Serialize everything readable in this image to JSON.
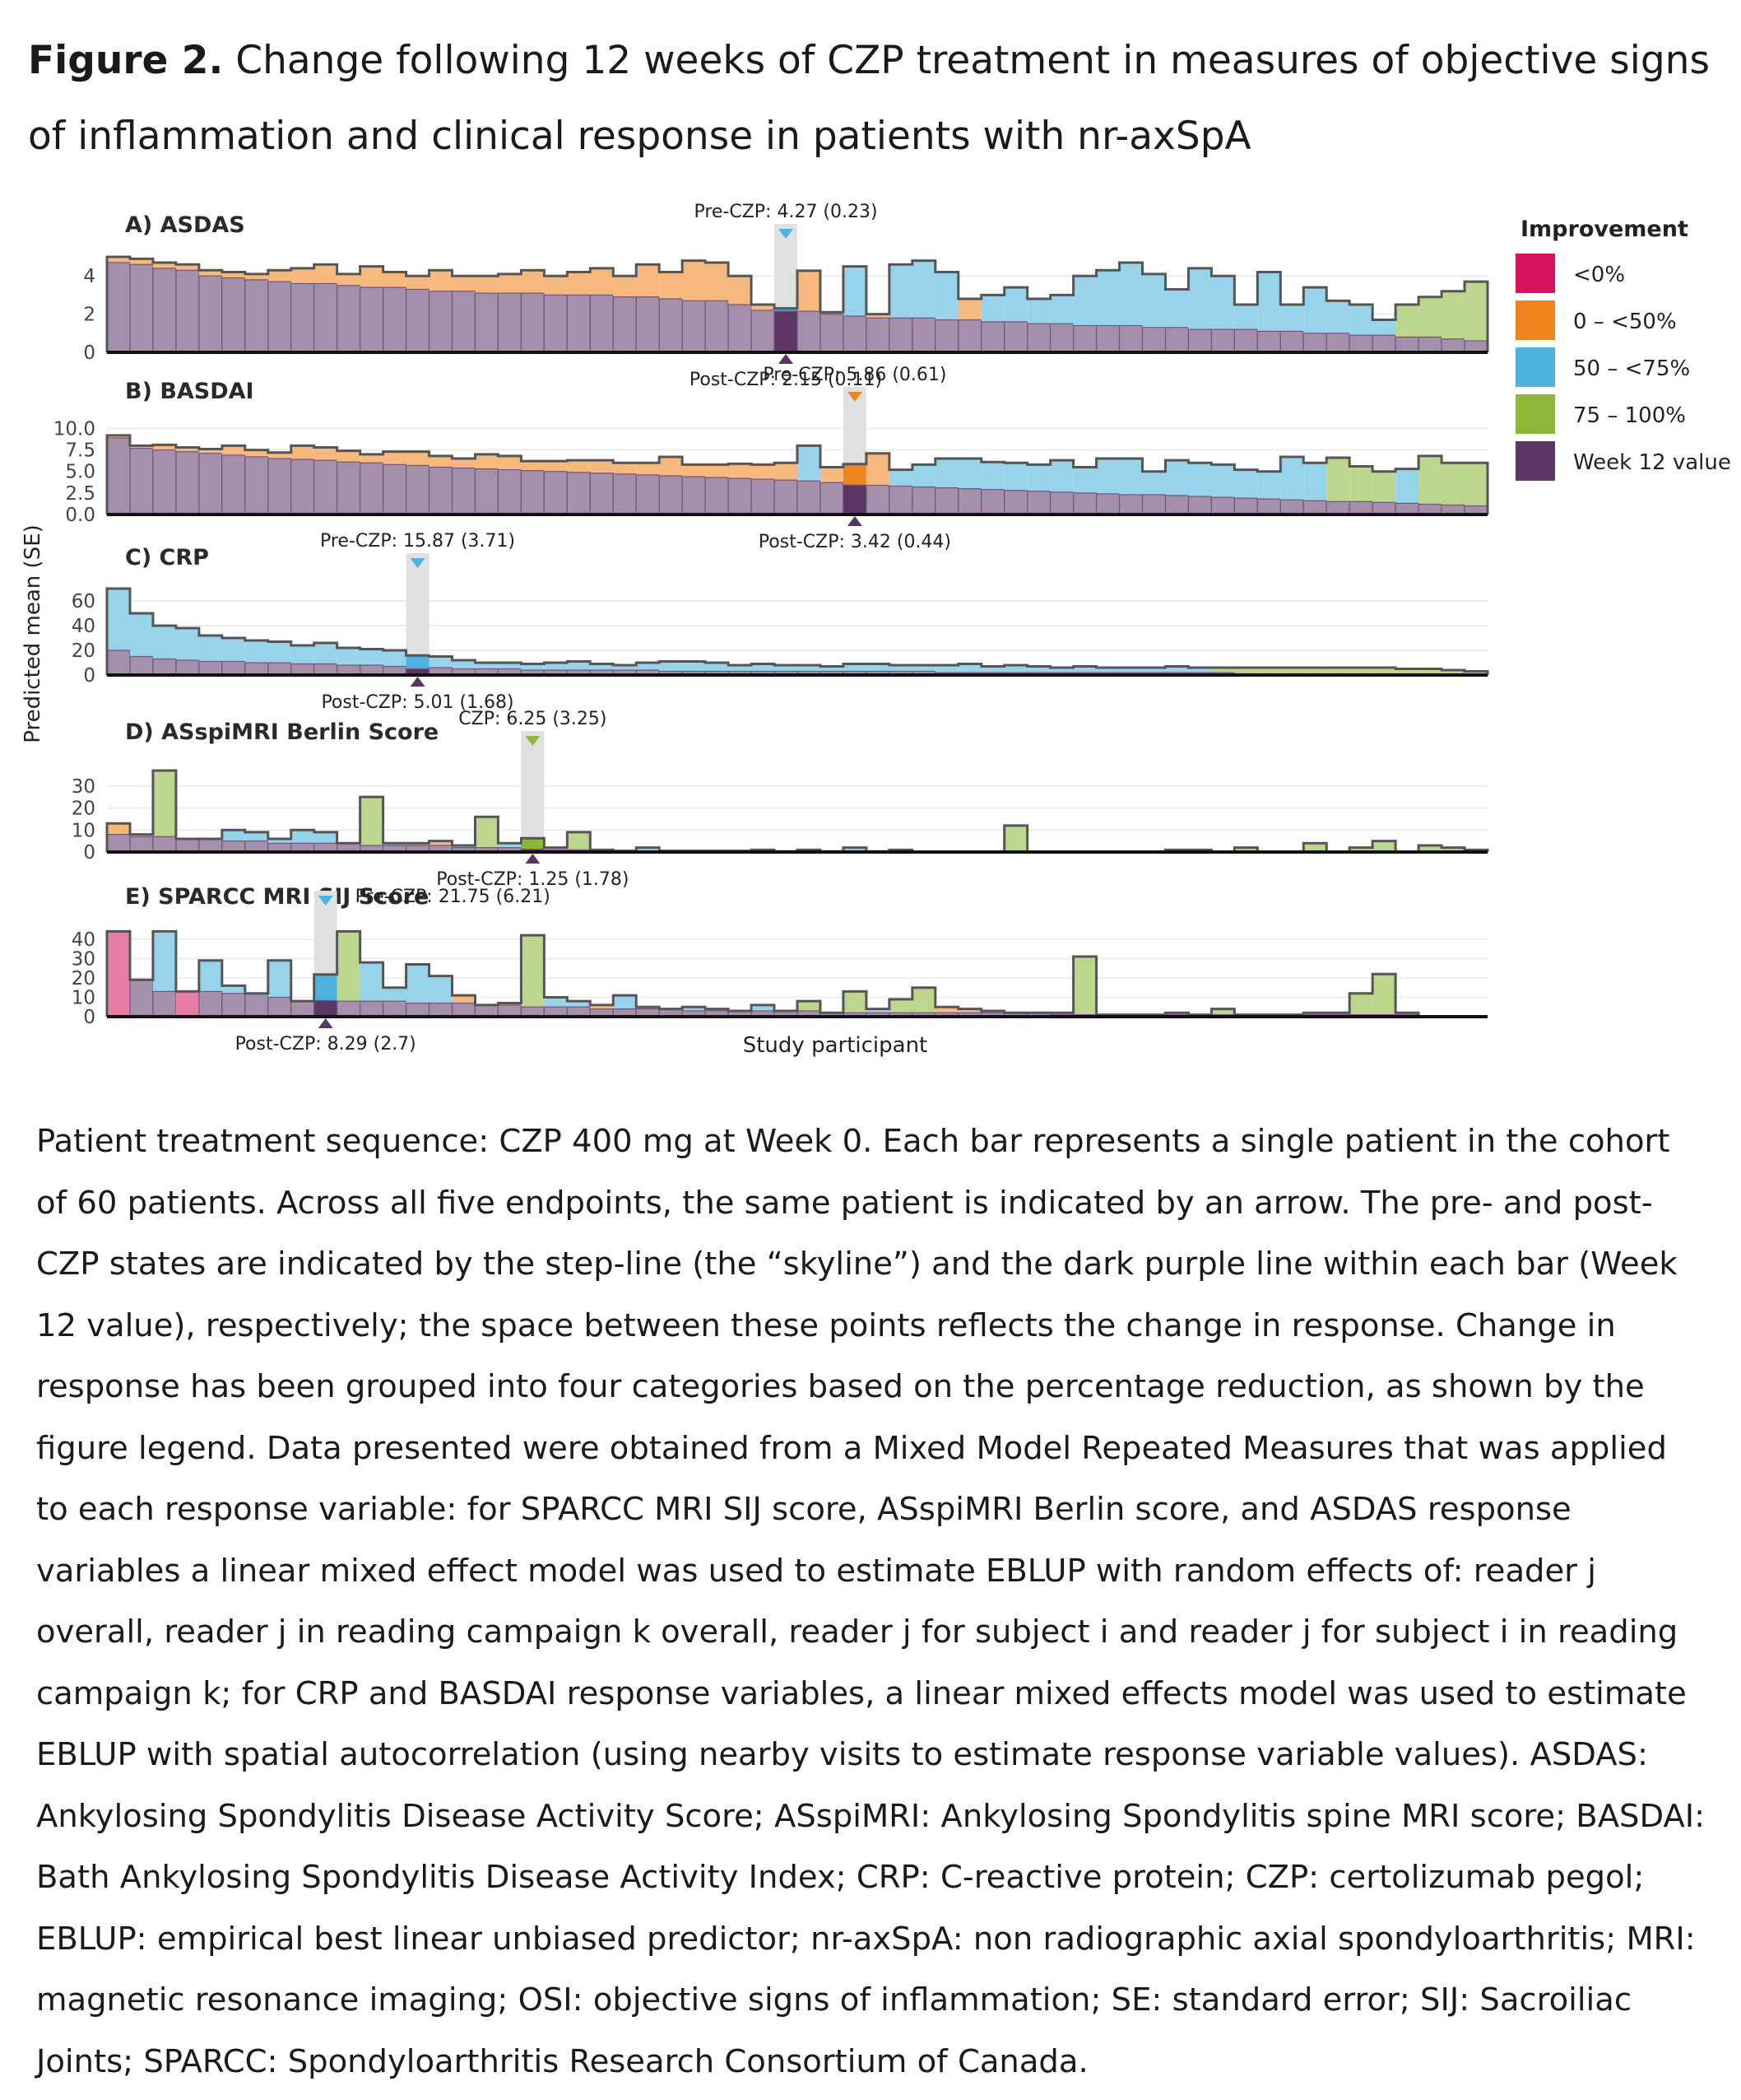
{
  "figure": {
    "label": "Figure 2.",
    "title": "Change following 12 weeks of CZP treatment in measures of objective signs of inflammation and clinical response in patients with nr-axSpA"
  },
  "colors": {
    "lt0": "#D6135F",
    "0to50": "#F0851E",
    "50to75": "#4DB3DE",
    "75to100": "#8DB83A",
    "week12": "#5B3566",
    "highlight": "#E0E0E0"
  },
  "chart_data": {
    "type": "bar",
    "n_patients": 60,
    "highlighted_patient_note": "Across all five endpoints, the same patient is indicated by an arrow.",
    "ylabel": "Predicted mean (SE)",
    "xlabel": "Study participant",
    "legend": {
      "title": "Improvement",
      "position": "top-right",
      "items": [
        {
          "key": "lt0",
          "label": "<0%"
        },
        {
          "key": "0to50",
          "label": "0 – <50%"
        },
        {
          "key": "50to75",
          "label": "50 – <75%"
        },
        {
          "key": "75to100",
          "label": "75 – 100%"
        },
        {
          "key": "week12",
          "label": "Week 12 value"
        }
      ]
    },
    "panels": [
      {
        "id": "asdas",
        "title": "A) ASDAS",
        "ylim": [
          0,
          5
        ],
        "yticks": [
          "0",
          "2",
          "4"
        ],
        "ytick_values": [
          0,
          2,
          4
        ],
        "highlight_index": 29,
        "annot_pre": "Pre-CZP: 4.27 (0.23)",
        "annot_post": "Post-CZP: 2.15 (0.11)",
        "pre": [
          5.0,
          4.9,
          4.7,
          4.6,
          4.3,
          4.2,
          4.1,
          4.3,
          4.4,
          4.6,
          4.1,
          4.5,
          4.2,
          4.0,
          4.3,
          4.0,
          4.0,
          4.1,
          4.3,
          4.0,
          4.2,
          4.4,
          4.0,
          4.6,
          4.2,
          4.8,
          4.7,
          4.0,
          2.5,
          2.3,
          4.27,
          2.1,
          4.5,
          2.0,
          4.6,
          4.8,
          4.2,
          2.8,
          3.0,
          3.4,
          2.8,
          3.0,
          4.0,
          4.3,
          4.7,
          4.1,
          3.3,
          4.4,
          4.0,
          2.5,
          4.2,
          2.5,
          3.4,
          2.7,
          2.5,
          1.7,
          2.5,
          2.9,
          3.2,
          3.7
        ],
        "post": [
          4.7,
          4.6,
          4.4,
          4.3,
          4.0,
          3.9,
          3.8,
          3.7,
          3.6,
          3.6,
          3.5,
          3.4,
          3.4,
          3.3,
          3.2,
          3.2,
          3.1,
          3.1,
          3.1,
          3.0,
          3.0,
          3.0,
          2.9,
          2.9,
          2.8,
          2.7,
          2.7,
          2.5,
          2.2,
          2.15,
          2.15,
          2.0,
          1.9,
          1.8,
          1.8,
          1.8,
          1.7,
          1.7,
          1.6,
          1.6,
          1.5,
          1.5,
          1.4,
          1.4,
          1.4,
          1.3,
          1.3,
          1.2,
          1.2,
          1.2,
          1.1,
          1.1,
          1.0,
          1.0,
          0.9,
          0.9,
          0.8,
          0.8,
          0.7,
          0.6
        ],
        "category": [
          "0to50",
          "0to50",
          "0to50",
          "0to50",
          "0to50",
          "0to50",
          "0to50",
          "0to50",
          "0to50",
          "0to50",
          "0to50",
          "0to50",
          "0to50",
          "0to50",
          "0to50",
          "0to50",
          "0to50",
          "0to50",
          "0to50",
          "0to50",
          "0to50",
          "0to50",
          "0to50",
          "0to50",
          "0to50",
          "0to50",
          "0to50",
          "0to50",
          "0to50",
          "50to75",
          "0to50",
          "0to50",
          "50to75",
          "0to50",
          "50to75",
          "50to75",
          "50to75",
          "0to50",
          "50to75",
          "50to75",
          "50to75",
          "50to75",
          "50to75",
          "50to75",
          "50to75",
          "50to75",
          "50to75",
          "50to75",
          "50to75",
          "50to75",
          "50to75",
          "50to75",
          "50to75",
          "50to75",
          "50to75",
          "50to75",
          "75to100",
          "75to100",
          "75to100",
          "75to100"
        ]
      },
      {
        "id": "basdai",
        "title": "B) BASDAI",
        "ylim": [
          0,
          11
        ],
        "yticks": [
          "0.0",
          "2.5",
          "5.0",
          "7.5",
          "10.0"
        ],
        "ytick_values": [
          0,
          2.5,
          5,
          7.5,
          10
        ],
        "highlight_index": 32,
        "annot_pre": "Pre-CZP: 5.86 (0.61)",
        "annot_post": "Post-CZP: 3.42 (0.44)",
        "pre": [
          9.2,
          8.0,
          8.1,
          7.8,
          7.6,
          8.0,
          7.5,
          7.2,
          8.0,
          7.8,
          7.4,
          7.0,
          7.3,
          7.3,
          6.8,
          6.5,
          7.0,
          6.8,
          6.2,
          6.2,
          6.3,
          6.3,
          6.0,
          6.0,
          6.7,
          5.8,
          5.8,
          5.9,
          5.8,
          6.0,
          8.0,
          5.5,
          5.86,
          7.1,
          5.2,
          5.8,
          6.5,
          6.5,
          6.1,
          6.0,
          5.8,
          6.3,
          5.5,
          6.5,
          6.5,
          5.0,
          6.3,
          6.0,
          5.8,
          5.2,
          5.0,
          6.7,
          6.0,
          6.6,
          5.6,
          5.0,
          5.3,
          6.8,
          6.0,
          6.0
        ],
        "post": [
          8.9,
          7.7,
          7.5,
          7.3,
          7.1,
          6.9,
          6.7,
          6.5,
          6.4,
          6.3,
          6.1,
          6.0,
          5.8,
          5.7,
          5.5,
          5.4,
          5.3,
          5.2,
          5.1,
          5.0,
          4.9,
          4.8,
          4.7,
          4.6,
          4.5,
          4.4,
          4.3,
          4.2,
          4.1,
          4.0,
          3.9,
          3.7,
          3.42,
          3.4,
          3.3,
          3.2,
          3.1,
          3.0,
          2.9,
          2.8,
          2.7,
          2.6,
          2.5,
          2.4,
          2.3,
          2.3,
          2.2,
          2.1,
          2.0,
          1.9,
          1.8,
          1.7,
          1.6,
          1.5,
          1.5,
          1.4,
          1.3,
          1.2,
          1.1,
          1.0
        ],
        "category": [
          "0to50",
          "0to50",
          "0to50",
          "0to50",
          "0to50",
          "0to50",
          "0to50",
          "0to50",
          "0to50",
          "0to50",
          "0to50",
          "0to50",
          "0to50",
          "0to50",
          "0to50",
          "0to50",
          "0to50",
          "0to50",
          "0to50",
          "0to50",
          "0to50",
          "0to50",
          "0to50",
          "0to50",
          "0to50",
          "0to50",
          "0to50",
          "0to50",
          "0to50",
          "0to50",
          "50to75",
          "0to50",
          "0to50",
          "0to50",
          "50to75",
          "50to75",
          "50to75",
          "50to75",
          "50to75",
          "50to75",
          "50to75",
          "50to75",
          "50to75",
          "50to75",
          "50to75",
          "50to75",
          "50to75",
          "50to75",
          "50to75",
          "50to75",
          "50to75",
          "50to75",
          "50to75",
          "75to100",
          "75to100",
          "75to100",
          "50to75",
          "75to100",
          "75to100",
          "75to100"
        ]
      },
      {
        "id": "crp",
        "title": "C) CRP",
        "ylim": [
          0,
          72
        ],
        "yticks": [
          "0",
          "20",
          "40",
          "60"
        ],
        "ytick_values": [
          0,
          20,
          40,
          60
        ],
        "highlight_index": 13,
        "annot_pre": "Pre-CZP: 15.87 (3.71)",
        "annot_post": "Post-CZP: 5.01 (1.68)",
        "pre": [
          70,
          50,
          40,
          38,
          32,
          30,
          28,
          27,
          24,
          26,
          22,
          21,
          20,
          15.87,
          15,
          12,
          10,
          10,
          9,
          10,
          11,
          9,
          8,
          10,
          11,
          11,
          10,
          8,
          9,
          8,
          8,
          7,
          9,
          9,
          8,
          8,
          8,
          9,
          7,
          8,
          7,
          6,
          7,
          6,
          6,
          6,
          7,
          6,
          6,
          6,
          6,
          6,
          6,
          6,
          6,
          6,
          5,
          5,
          4,
          3
        ],
        "post": [
          20,
          15,
          13,
          12,
          11,
          11,
          10,
          10,
          9,
          9,
          8,
          8,
          7,
          5.01,
          6,
          5,
          5,
          5,
          4,
          4,
          4,
          4,
          4,
          4,
          3,
          3,
          3,
          3,
          3,
          3,
          3,
          3,
          3,
          3,
          3,
          3,
          2,
          2,
          2,
          2,
          2,
          2,
          2,
          2,
          2,
          2,
          2,
          2,
          2,
          1,
          1,
          1,
          1,
          1,
          1,
          1,
          1,
          1,
          1,
          1
        ],
        "category": [
          "50to75",
          "50to75",
          "50to75",
          "50to75",
          "50to75",
          "50to75",
          "50to75",
          "50to75",
          "50to75",
          "50to75",
          "50to75",
          "50to75",
          "50to75",
          "50to75",
          "50to75",
          "50to75",
          "50to75",
          "50to75",
          "50to75",
          "50to75",
          "50to75",
          "50to75",
          "50to75",
          "50to75",
          "50to75",
          "50to75",
          "50to75",
          "50to75",
          "50to75",
          "50to75",
          "50to75",
          "50to75",
          "50to75",
          "50to75",
          "50to75",
          "50to75",
          "50to75",
          "50to75",
          "50to75",
          "50to75",
          "50to75",
          "50to75",
          "50to75",
          "50to75",
          "50to75",
          "50to75",
          "50to75",
          "50to75",
          "75to100",
          "75to100",
          "75to100",
          "75to100",
          "75to100",
          "75to100",
          "75to100",
          "75to100",
          "75to100",
          "75to100",
          "75to100",
          "75to100"
        ]
      },
      {
        "id": "asspimri",
        "title": "D) ASspiMRI Berlin Score",
        "ylim": [
          0,
          40
        ],
        "yticks": [
          "0",
          "10",
          "20",
          "30"
        ],
        "ytick_values": [
          0,
          10,
          20,
          30
        ],
        "highlight_index": 18,
        "annot_pre": "CZP: 6.25 (3.25)",
        "annot_post": "Post-CZP: 1.25 (1.78)",
        "pre": [
          13,
          8,
          37,
          6,
          3,
          10,
          9,
          6,
          10,
          9,
          4,
          25,
          4,
          4,
          5,
          3,
          16,
          4,
          6.25,
          2,
          9,
          1,
          0,
          2,
          0,
          0,
          0,
          0,
          1,
          0,
          1,
          0,
          2,
          0,
          1,
          0,
          0,
          0,
          0,
          12,
          0,
          0,
          0,
          0,
          0,
          0,
          1,
          1,
          0,
          2,
          0,
          0,
          4,
          0,
          2,
          5,
          0,
          3,
          2,
          1
        ],
        "post": [
          8,
          7,
          7,
          6,
          6,
          5,
          5,
          4,
          4,
          4,
          4,
          3,
          3,
          3,
          3,
          2,
          2,
          2,
          1.25,
          1,
          1,
          1,
          0.5,
          0.5,
          0.5,
          0.5,
          0.5,
          0.5,
          0.5,
          0.3,
          0.3,
          0.3,
          0.3,
          0.3,
          0.3,
          0.2,
          0.2,
          0.2,
          0.2,
          0.2,
          0.2,
          0.2,
          0.2,
          0.2,
          0.2,
          0.2,
          0.2,
          0.2,
          0.2,
          0.2,
          0.2,
          0.2,
          0.2,
          0.2,
          0.2,
          0.2,
          0.2,
          0.2,
          0.2,
          0.2
        ],
        "category": [
          "0to50",
          "50to75",
          "75to100",
          "50to75",
          "0to50",
          "50to75",
          "50to75",
          "50to75",
          "50to75",
          "50to75",
          "50to75",
          "75to100",
          "50to75",
          "0to50",
          "0to50",
          "50to75",
          "75to100",
          "50to75",
          "75to100",
          "50to75",
          "75to100",
          "50to75",
          "50to75",
          "50to75",
          "50to75",
          "50to75",
          "50to75",
          "50to75",
          "50to75",
          "50to75",
          "50to75",
          "50to75",
          "50to75",
          "50to75",
          "50to75",
          "50to75",
          "50to75",
          "50to75",
          "50to75",
          "75to100",
          "50to75",
          "50to75",
          "50to75",
          "50to75",
          "50to75",
          "50to75",
          "75to100",
          "75to100",
          "75to100",
          "75to100",
          "75to100",
          "75to100",
          "75to100",
          "75to100",
          "75to100",
          "75to100",
          "75to100",
          "75to100",
          "75to100",
          "75to100"
        ]
      },
      {
        "id": "sparcc",
        "title": "E) SPARCC MRI SIJ Score",
        "ylim": [
          0,
          48
        ],
        "yticks": [
          "0",
          "10",
          "20",
          "30",
          "40"
        ],
        "ytick_values": [
          0,
          10,
          20,
          30,
          40
        ],
        "highlight_index": 9,
        "annot_pre": "Pre-CZP: 21.75 (6.21)",
        "annot_post": "Post-CZP: 8.29 (2.7)",
        "pre": [
          44,
          19,
          44,
          13,
          29,
          16,
          8,
          29,
          8,
          21.75,
          44,
          28,
          15,
          27,
          21,
          11,
          6,
          7,
          42,
          10,
          8,
          6,
          11,
          5,
          4,
          5,
          4,
          3,
          6,
          3,
          8,
          2,
          13,
          4,
          9,
          15,
          5,
          4,
          3,
          2,
          2,
          2,
          31,
          1,
          1,
          1,
          2,
          1,
          4,
          1,
          1,
          1,
          2,
          2,
          12,
          22,
          2,
          0,
          0,
          0
        ],
        "post": [
          44,
          19,
          13,
          13,
          13,
          12,
          12,
          10,
          8,
          8.29,
          8,
          8,
          8,
          7,
          7,
          7,
          6,
          6,
          5,
          5,
          5,
          4,
          4,
          4,
          4,
          3,
          3,
          3,
          3,
          3,
          3,
          2,
          2,
          2,
          2,
          2,
          2,
          2,
          2,
          2,
          2,
          1,
          1,
          1,
          1,
          1,
          1,
          1,
          1,
          1,
          1,
          1,
          1,
          1,
          1,
          1,
          1,
          0,
          0,
          0
        ],
        "category": [
          "lt0",
          "50to75",
          "50to75",
          "lt0",
          "50to75",
          "50to75",
          "0to50",
          "50to75",
          "0to50",
          "50to75",
          "75to100",
          "50to75",
          "50to75",
          "50to75",
          "50to75",
          "0to50",
          "0to50",
          "0to50",
          "75to100",
          "50to75",
          "50to75",
          "0to50",
          "50to75",
          "0to50",
          "0to50",
          "50to75",
          "0to50",
          "0to50",
          "50to75",
          "0to50",
          "75to100",
          "0to50",
          "75to100",
          "50to75",
          "75to100",
          "75to100",
          "0to50",
          "0to50",
          "0to50",
          "0to50",
          "0to50",
          "0to50",
          "75to100",
          "0to50",
          "0to50",
          "0to50",
          "0to50",
          "0to50",
          "75to100",
          "0to50",
          "0to50",
          "0to50",
          "75to100",
          "75to100",
          "75to100",
          "75to100",
          "75to100",
          "75to100",
          "75to100",
          "75to100"
        ]
      }
    ]
  },
  "caption": "Patient treatment sequence: CZP 400 mg at Week 0. Each bar represents a single patient in the cohort of 60 patients. Across all five endpoints, the same patient is indicated by an arrow. The pre- and post-CZP states are indicated by the step-line (the “skyline”) and the dark purple line within each bar (Week 12 value), respectively; the space between these points reflects the change in response. Change in response has been grouped into four categories based on the percentage reduction, as shown by the figure legend. Data presented were obtained from a Mixed Model Repeated Measures that was applied to each response variable: for SPARCC MRI SIJ score, ASspiMRI Berlin score, and ASDAS response variables a linear mixed effect model was used to estimate EBLUP with random effects of: reader j overall, reader j in reading campaign k overall, reader j for subject i and reader j for subject i in reading campaign k; for CRP and BASDAI response variables, a linear mixed effects model was used to estimate EBLUP with spatial autocorrelation (using nearby visits to estimate response variable values). ASDAS: Ankylosing Spondylitis Disease Activity Score; ASspiMRI: Ankylosing Spondylitis spine MRI score; BASDAI: Bath Ankylosing Spondylitis Disease Activity Index; CRP: C-reactive protein; CZP: certolizumab pegol; EBLUP: empirical best linear unbiased predictor; nr-axSpA: non radiographic axial spondyloarthritis; MRI: magnetic resonance imaging; OSI: objective signs of inflammation; SE: standard error; SIJ: Sacroiliac Joints; SPARCC: Spondyloarthritis Research Consortium of Canada."
}
